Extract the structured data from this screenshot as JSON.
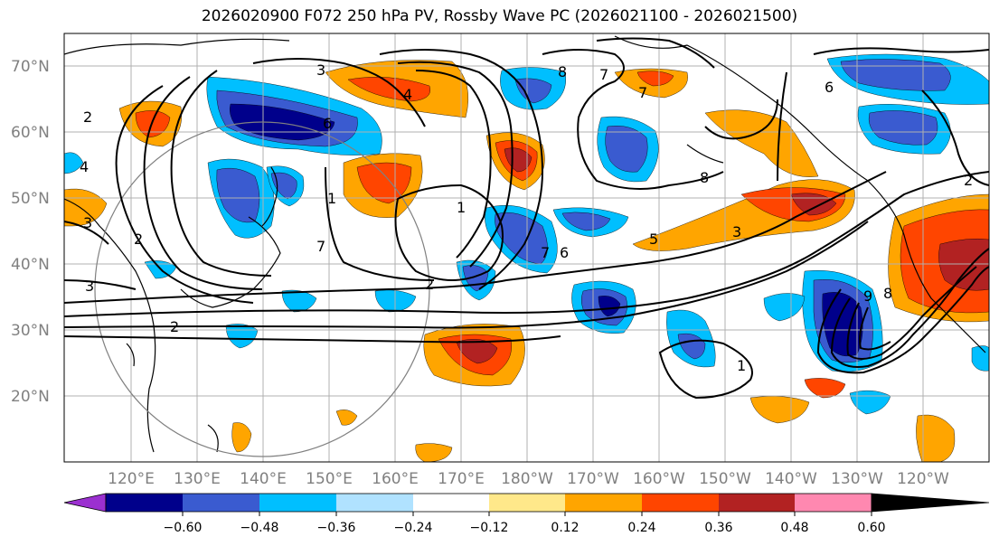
{
  "title": "2026020900 F072 250 hPa PV, Rossby Wave PC (2026021100 - 2026021500)",
  "lat_labels": [
    "70°N",
    "60°N",
    "50°N",
    "40°N",
    "30°N",
    "20°N"
  ],
  "lon_labels": [
    "120°E",
    "130°E",
    "140°E",
    "150°E",
    "160°E",
    "170°E",
    "180°W",
    "170°W",
    "160°W",
    "150°W",
    "140°W",
    "130°W",
    "120°W"
  ],
  "contour_labels": [
    "3",
    "4",
    "8",
    "7",
    "7",
    "6",
    "7",
    "2",
    "4",
    "3",
    "2",
    "3",
    "2",
    "1",
    "1",
    "2",
    "7",
    "6",
    "5",
    "3",
    "8",
    "6",
    "9",
    "8",
    "1",
    "2"
  ],
  "colorbar": {
    "ticks": [
      "−0.60",
      "−0.48",
      "−0.36",
      "−0.24",
      "−0.12",
      "0.12",
      "0.24",
      "0.36",
      "0.48",
      "0.60"
    ],
    "colors": [
      "#9b30d0",
      "#00008b",
      "#3a5bd0",
      "#00bfff",
      "#b0e2ff",
      "#ffffff",
      "#ffe88a",
      "#ffa500",
      "#ff4500",
      "#b22222",
      "#ff88b0"
    ]
  },
  "fill_colors": {
    "neg_strong": "#00008b",
    "neg_mid": "#3a5bd0",
    "neg_weak": "#00bfff",
    "pos_weak": "#ffa500",
    "pos_mid": "#ff4500",
    "pos_strong": "#b22222"
  }
}
